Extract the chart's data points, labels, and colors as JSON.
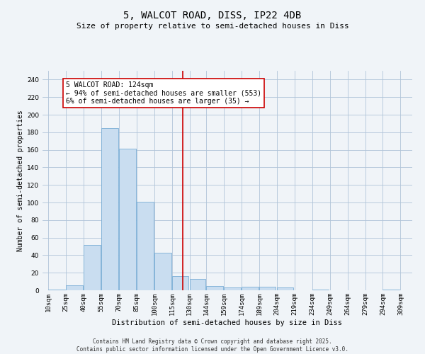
{
  "title": "5, WALCOT ROAD, DISS, IP22 4DB",
  "subtitle": "Size of property relative to semi-detached houses in Diss",
  "xlabel": "Distribution of semi-detached houses by size in Diss",
  "ylabel": "Number of semi-detached properties",
  "bins": [
    10,
    25,
    40,
    55,
    70,
    85,
    100,
    115,
    130,
    144,
    159,
    174,
    189,
    204,
    219,
    234,
    249,
    264,
    279,
    294,
    309
  ],
  "bin_labels": [
    "10sqm",
    "25sqm",
    "40sqm",
    "55sqm",
    "70sqm",
    "85sqm",
    "100sqm",
    "115sqm",
    "130sqm",
    "144sqm",
    "159sqm",
    "174sqm",
    "189sqm",
    "204sqm",
    "219sqm",
    "234sqm",
    "249sqm",
    "264sqm",
    "279sqm",
    "294sqm",
    "309sqm"
  ],
  "counts": [
    1,
    6,
    52,
    185,
    161,
    101,
    43,
    16,
    13,
    5,
    3,
    4,
    4,
    3,
    0,
    1,
    0,
    0,
    0,
    1
  ],
  "bar_color": "#c9ddf0",
  "bar_edge_color": "#7aaed6",
  "property_size": 124,
  "vline_color": "#cc0000",
  "annotation_text": "5 WALCOT ROAD: 124sqm\n← 94% of semi-detached houses are smaller (553)\n6% of semi-detached houses are larger (35) →",
  "annotation_box_color": "#ffffff",
  "annotation_box_edge_color": "#cc0000",
  "ylim": [
    0,
    250
  ],
  "yticks": [
    0,
    20,
    40,
    60,
    80,
    100,
    120,
    140,
    160,
    180,
    200,
    220,
    240
  ],
  "grid_color": "#b0c4d8",
  "background_color": "#f0f4f8",
  "footer": "Contains HM Land Registry data © Crown copyright and database right 2025.\nContains public sector information licensed under the Open Government Licence v3.0.",
  "title_fontsize": 10,
  "subtitle_fontsize": 8,
  "xlabel_fontsize": 7.5,
  "ylabel_fontsize": 7,
  "tick_fontsize": 6.5,
  "annotation_fontsize": 7,
  "footer_fontsize": 5.5
}
